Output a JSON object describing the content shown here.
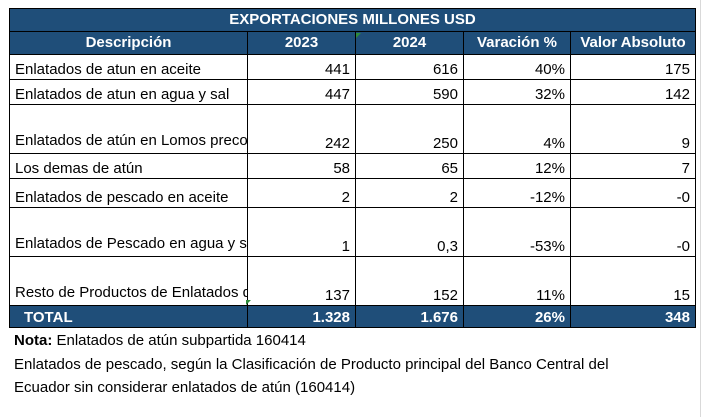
{
  "table": {
    "title": "EXPORTACIONES MILLONES USD",
    "headers": [
      "Descripción",
      "2023",
      "2024",
      "Varación %",
      "Valor Absoluto"
    ],
    "rows": [
      {
        "desc": "Enlatados de atun en aceite",
        "y2023": "441",
        "y2024": "616",
        "var": "40%",
        "abs": "175"
      },
      {
        "desc": "Enlatados de atun en agua y sal",
        "y2023": "447",
        "y2024": "590",
        "var": "32%",
        "abs": "142"
      },
      {
        "desc": "Enlatados de atún en Lomos precocidos",
        "y2023": "242",
        "y2024": "250",
        "var": "4%",
        "abs": "9"
      },
      {
        "desc": "Los demas de atún",
        "y2023": "58",
        "y2024": "65",
        "var": "12%",
        "abs": "7"
      },
      {
        "desc": "Enlatados de pescado en aceite",
        "y2023": "2",
        "y2024": "2",
        "var": "-12%",
        "abs": "-0"
      },
      {
        "desc": "Enlatados de Pescado en agua y sal",
        "y2023": "1",
        "y2024": "0,3",
        "var": "-53%",
        "abs": "-0"
      },
      {
        "desc": "Resto de Productos de Enlatados de Pescado",
        "y2023": "137",
        "y2024": "152",
        "var": "11%",
        "abs": "15"
      }
    ],
    "total": {
      "label": "TOTAL",
      "y2023": "1.328",
      "y2024": "1.676",
      "var": "26%",
      "abs": "348"
    }
  },
  "notes": {
    "label": "Nota:",
    "line1": " Enlatados de atún subpartida 160414",
    "line2": "Enlatados de pescado, según la Clasificación de Producto principal del Banco Central del",
    "line3": "Ecuador sin considerar enlatados de atún (160414)"
  },
  "colors": {
    "header_bg": "#1f4e79",
    "header_text": "#ffffff"
  }
}
